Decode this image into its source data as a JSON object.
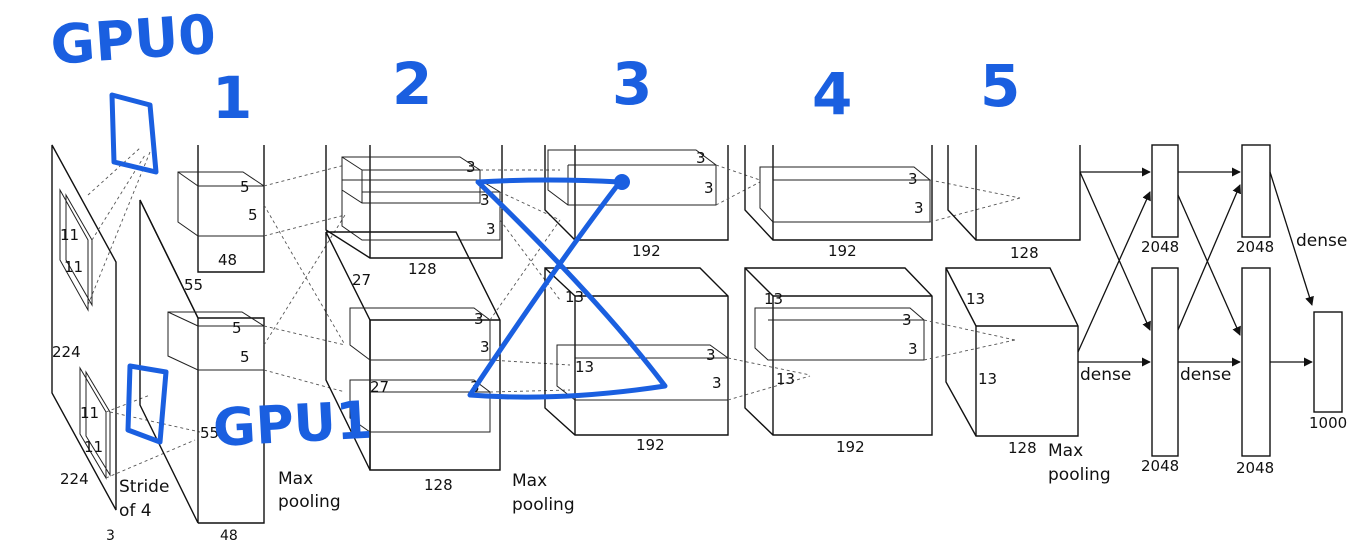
{
  "annotations": {
    "gpu0": "GPU0",
    "gpu1": "GPU1",
    "layer_numbers": [
      "1",
      "2",
      "3",
      "4",
      "5"
    ],
    "ink_color": "#1a5fe0"
  },
  "input": {
    "size_side": "224",
    "size_bottom": "224",
    "kernel_top_a": "11",
    "kernel_top_b": "11",
    "kernel_bot_a": "11",
    "kernel_bot_b": "11",
    "stride_line1": "Stride",
    "stride_line2": "of 4",
    "channels": "3"
  },
  "conv1": {
    "size_top": "55",
    "size_bot": "55",
    "kernel_top_a": "5",
    "kernel_top_b": "5",
    "kernel_bot_a": "5",
    "kernel_bot_b": "5",
    "depth_top": "48",
    "depth_bot": "48",
    "pool_line1": "Max",
    "pool_line2": "pooling"
  },
  "conv2": {
    "kernel_top": [
      "3",
      "3",
      "3"
    ],
    "kernel_bot": [
      "3",
      "3",
      "3"
    ],
    "size_top": "27",
    "size_bot": "27",
    "depth_top": "128",
    "depth_bot": "128",
    "pool_line1": "Max",
    "pool_line2": "pooling"
  },
  "conv3": {
    "kernel_top": [
      "3",
      "3"
    ],
    "kernel_bot": [
      "3",
      "3"
    ],
    "size_a": "13",
    "size_b": "13",
    "depth_top": "192",
    "depth_bot": "192"
  },
  "conv4": {
    "kernel_top": [
      "3",
      "3"
    ],
    "kernel_bot": [
      "3",
      "3"
    ],
    "size_a": "13",
    "size_b": "13",
    "depth_top": "192",
    "depth_bot": "192"
  },
  "conv5": {
    "size_a": "13",
    "size_b": "13",
    "depth_top": "128",
    "depth_bot": "128",
    "pool_line1": "Max",
    "pool_line2": "pooling"
  },
  "dense": {
    "label_a": "dense",
    "label_b": "dense",
    "label_c": "dense",
    "fc1_top": "2048",
    "fc1_bot": "2048",
    "fc2_top": "2048",
    "fc2_bot": "2048",
    "output": "1000"
  }
}
